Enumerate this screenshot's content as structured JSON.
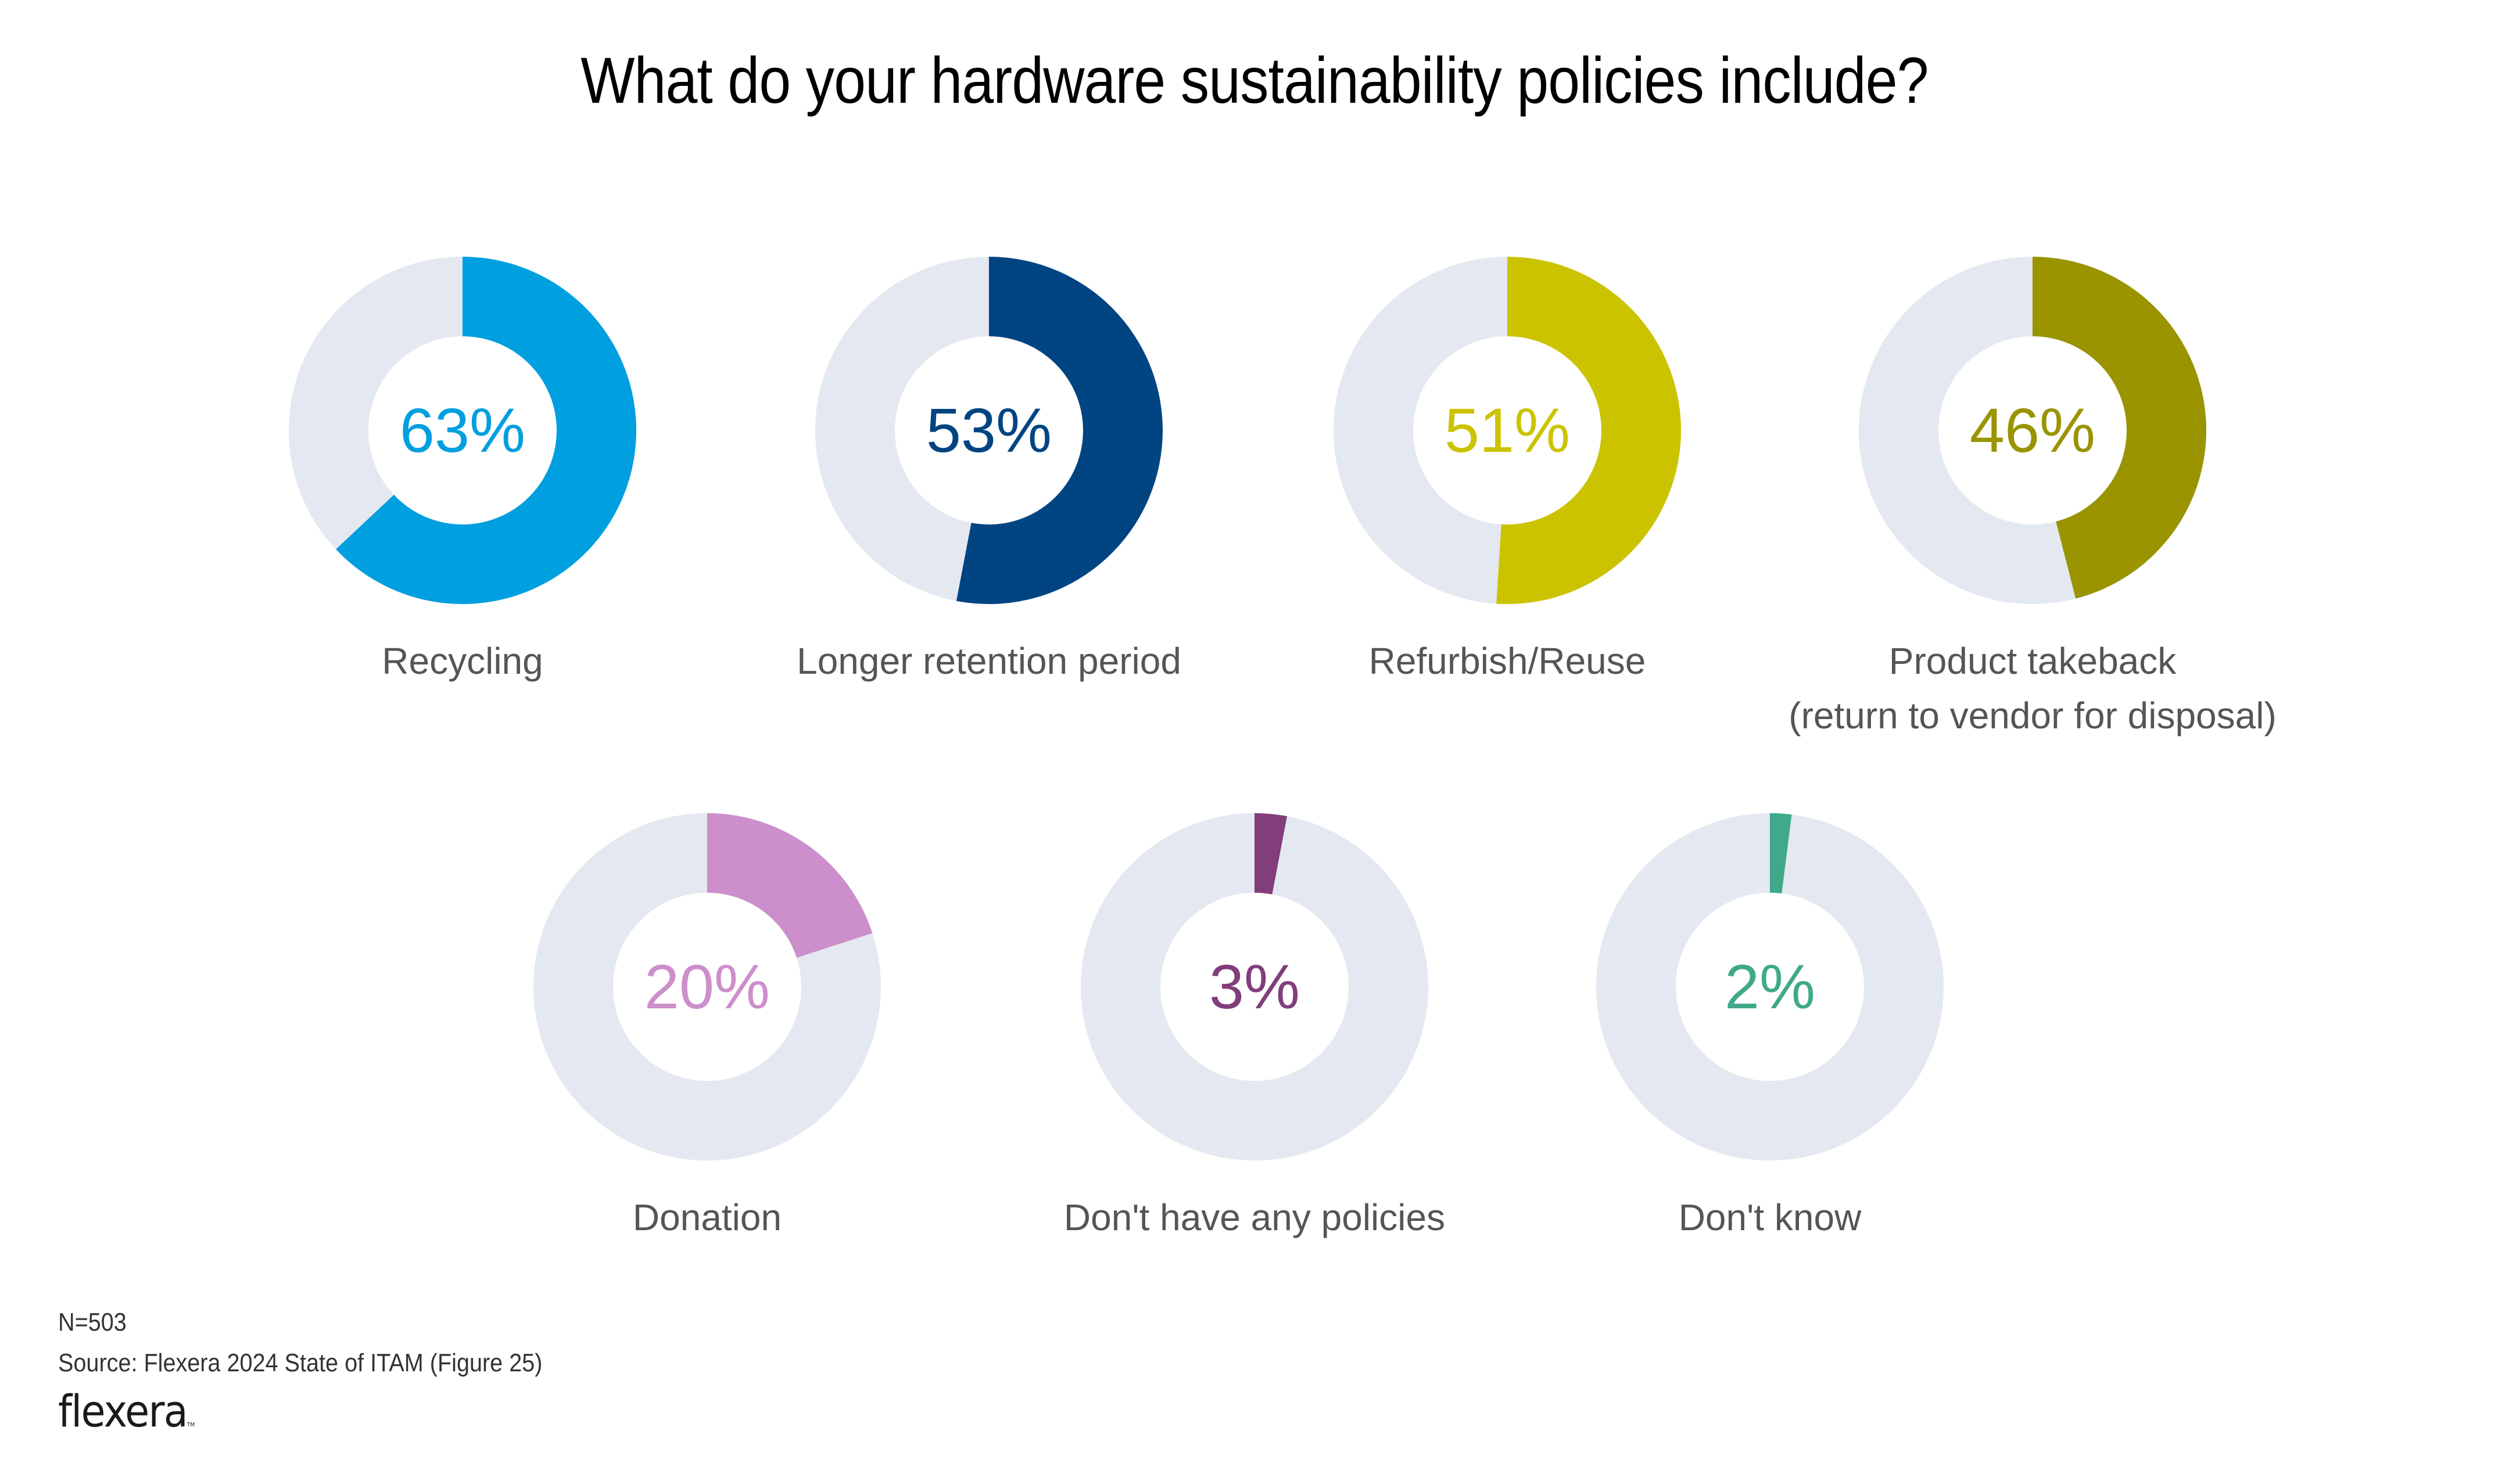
{
  "chart_data": {
    "type": "pie",
    "variant": "donut-grid",
    "title": "What do your hardware sustainability policies include?",
    "track_color": "#E4E8F0",
    "items": [
      {
        "label": [
          "Recycling"
        ],
        "value": 63,
        "display": "63%",
        "color": "#009FDF"
      },
      {
        "label": [
          "Longer retention period"
        ],
        "value": 53,
        "display": "53%",
        "color": "#004481"
      },
      {
        "label": [
          "Refurbish/Reuse"
        ],
        "value": 51,
        "display": "51%",
        "color": "#CCC300"
      },
      {
        "label": [
          "Product takeback",
          "(return to vendor for disposal)"
        ],
        "value": 46,
        "display": "46%",
        "color": "#999400"
      },
      {
        "label": [
          "Donation"
        ],
        "value": 20,
        "display": "20%",
        "color": "#CC8FCB"
      },
      {
        "label": [
          "Don't have any policies"
        ],
        "value": 3,
        "display": "3%",
        "color": "#823D7B"
      },
      {
        "label": [
          "Don't know"
        ],
        "value": 2,
        "display": "2%",
        "color": "#3FA98A"
      }
    ],
    "unit": "%",
    "max": 100
  },
  "footer": {
    "sample_size": "N=503",
    "source": "Source: Flexera 2024 State of ITAM (Figure 25)",
    "logo_text": "flexera",
    "logo_mark": "TM"
  }
}
